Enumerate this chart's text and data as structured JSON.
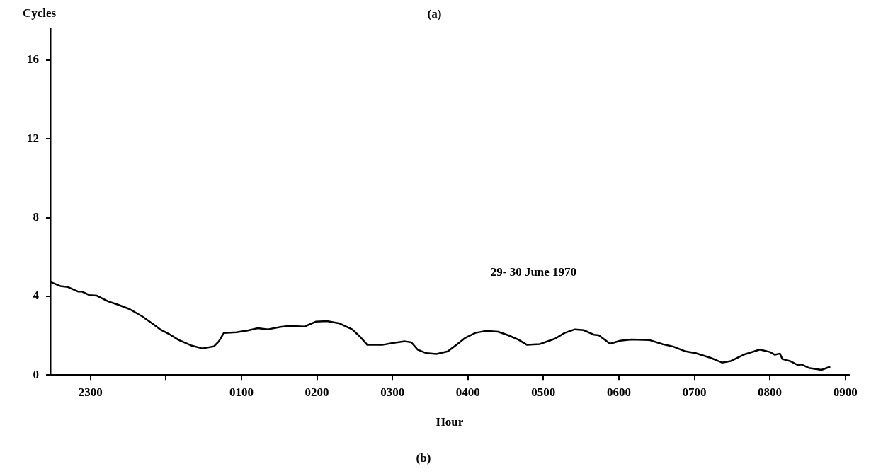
{
  "chart_data": {
    "type": "line",
    "title": "(a)",
    "xlabel": "Hour",
    "ylabel": "Cycles",
    "annotations": [
      "29- 30 June 1970",
      "(b)"
    ],
    "xlim": [
      "1970-06-29T22:28",
      "1970-06-30T09:03"
    ],
    "ylim": [
      0,
      17.6
    ],
    "xticks": [
      {
        "value": "1970-06-29T23:00",
        "label": "2300"
      },
      {
        "value": "1970-06-30T00:00",
        "label": null
      },
      {
        "value": "1970-06-30T01:00",
        "label": "0100"
      },
      {
        "value": "1970-06-30T02:00",
        "label": "0200"
      },
      {
        "value": "1970-06-30T03:00",
        "label": "0300"
      },
      {
        "value": "1970-06-30T04:00",
        "label": "0400"
      },
      {
        "value": "1970-06-30T05:00",
        "label": "0500"
      },
      {
        "value": "1970-06-30T06:00",
        "label": "0600"
      },
      {
        "value": "1970-06-30T07:00",
        "label": "0700"
      },
      {
        "value": "1970-06-30T08:00",
        "label": "0800"
      },
      {
        "value": "1970-06-30T09:00",
        "label": "0900"
      }
    ],
    "yticks": [
      0,
      4,
      8,
      12,
      16
    ],
    "grid": false,
    "legend": false,
    "marker": "none",
    "line_style": "solid",
    "series": [
      {
        "color": "#000000",
        "x": [
          "1970-06-29T22:28",
          "1970-06-29T22:36",
          "1970-06-29T22:42",
          "1970-06-29T22:50",
          "1970-06-29T22:53",
          "1970-06-29T22:59",
          "1970-06-29T23:05",
          "1970-06-29T23:14",
          "1970-06-29T23:21",
          "1970-06-29T23:31",
          "1970-06-29T23:41",
          "1970-06-29T23:49",
          "1970-06-29T23:56",
          "1970-06-30T00:02",
          "1970-06-30T00:10",
          "1970-06-30T00:20",
          "1970-06-30T00:29",
          "1970-06-30T00:38",
          "1970-06-30T00:42",
          "1970-06-30T00:46",
          "1970-06-30T00:56",
          "1970-06-30T01:05",
          "1970-06-30T01:13",
          "1970-06-30T01:21",
          "1970-06-30T01:31",
          "1970-06-30T01:38",
          "1970-06-30T01:50",
          "1970-06-30T01:59",
          "1970-06-30T02:08",
          "1970-06-30T02:18",
          "1970-06-30T02:28",
          "1970-06-30T02:34",
          "1970-06-30T02:40",
          "1970-06-30T02:52",
          "1970-06-30T03:01",
          "1970-06-30T03:10",
          "1970-06-30T03:15",
          "1970-06-30T03:20",
          "1970-06-30T03:27",
          "1970-06-30T03:35",
          "1970-06-30T03:44",
          "1970-06-30T03:52",
          "1970-06-30T03:58",
          "1970-06-30T04:06",
          "1970-06-30T04:14",
          "1970-06-30T04:24",
          "1970-06-30T04:32",
          "1970-06-30T04:40",
          "1970-06-30T04:47",
          "1970-06-30T04:57",
          "1970-06-30T05:09",
          "1970-06-30T05:17",
          "1970-06-30T05:25",
          "1970-06-30T05:32",
          "1970-06-30T05:40",
          "1970-06-30T05:44",
          "1970-06-30T05:53",
          "1970-06-30T06:01",
          "1970-06-30T06:10",
          "1970-06-30T06:24",
          "1970-06-30T06:35",
          "1970-06-30T06:43",
          "1970-06-30T06:53",
          "1970-06-30T07:01",
          "1970-06-30T07:13",
          "1970-06-30T07:22",
          "1970-06-30T07:29",
          "1970-06-30T07:40",
          "1970-06-30T07:52",
          "1970-06-30T08:00",
          "1970-06-30T08:04",
          "1970-06-30T08:08",
          "1970-06-30T08:10",
          "1970-06-30T08:16",
          "1970-06-30T08:22",
          "1970-06-30T08:25",
          "1970-06-30T08:31",
          "1970-06-30T08:41",
          "1970-06-30T08:48"
        ],
        "values": [
          4.73,
          4.52,
          4.47,
          4.24,
          4.24,
          4.06,
          4.03,
          3.74,
          3.59,
          3.35,
          2.98,
          2.62,
          2.29,
          2.1,
          1.78,
          1.5,
          1.35,
          1.45,
          1.71,
          2.14,
          2.17,
          2.26,
          2.38,
          2.32,
          2.44,
          2.5,
          2.46,
          2.71,
          2.74,
          2.62,
          2.32,
          1.96,
          1.53,
          1.53,
          1.63,
          1.71,
          1.66,
          1.29,
          1.11,
          1.07,
          1.2,
          1.59,
          1.89,
          2.14,
          2.24,
          2.2,
          2.02,
          1.8,
          1.53,
          1.57,
          1.84,
          2.14,
          2.32,
          2.28,
          2.05,
          2.02,
          1.59,
          1.74,
          1.8,
          1.78,
          1.56,
          1.45,
          1.2,
          1.11,
          0.87,
          0.63,
          0.71,
          1.05,
          1.29,
          1.17,
          1.03,
          1.09,
          0.81,
          0.71,
          0.51,
          0.54,
          0.36,
          0.26,
          0.42
        ]
      }
    ]
  }
}
